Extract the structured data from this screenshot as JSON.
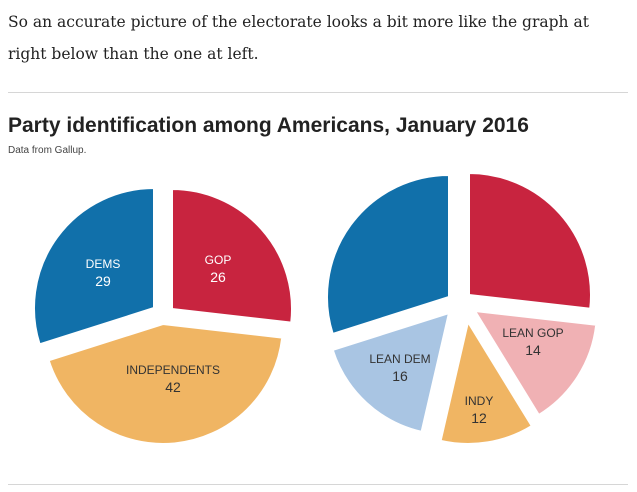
{
  "intro_text": "So an accurate picture of the electorate looks a bit more like the graph at right below than the one at left.",
  "chart_title": "Party identification among Americans, January 2016",
  "chart_subtitle": "Data from Gallup.",
  "colors": {
    "dems": "#1170aa",
    "gop": "#c8243f",
    "independents": "#f0b563",
    "lean_dem": "#a9c5e3",
    "lean_gop": "#f0b1b4",
    "indy": "#f0b563",
    "text_light": "#ffffff",
    "text_dark": "#333333"
  },
  "chart_data": [
    {
      "type": "pie",
      "title": "Party identification among Americans, January 2016",
      "subtitle": "Data from Gallup.",
      "slices": [
        {
          "key": "dems",
          "label": "DEMS",
          "value": 29
        },
        {
          "key": "gop",
          "label": "GOP",
          "value": 26
        },
        {
          "key": "independents",
          "label": "INDEPENDENTS",
          "value": 42
        }
      ]
    },
    {
      "type": "pie",
      "title": "Party identification among Americans, January 2016",
      "subtitle": "Data from Gallup.",
      "slices": [
        {
          "key": "dems",
          "label": "",
          "value": 29
        },
        {
          "key": "gop",
          "label": "",
          "value": 26
        },
        {
          "key": "lean_gop",
          "label": "LEAN GOP",
          "value": 14
        },
        {
          "key": "indy",
          "label": "INDY",
          "value": 12
        },
        {
          "key": "lean_dem",
          "label": "LEAN DEM",
          "value": 16
        }
      ]
    }
  ]
}
